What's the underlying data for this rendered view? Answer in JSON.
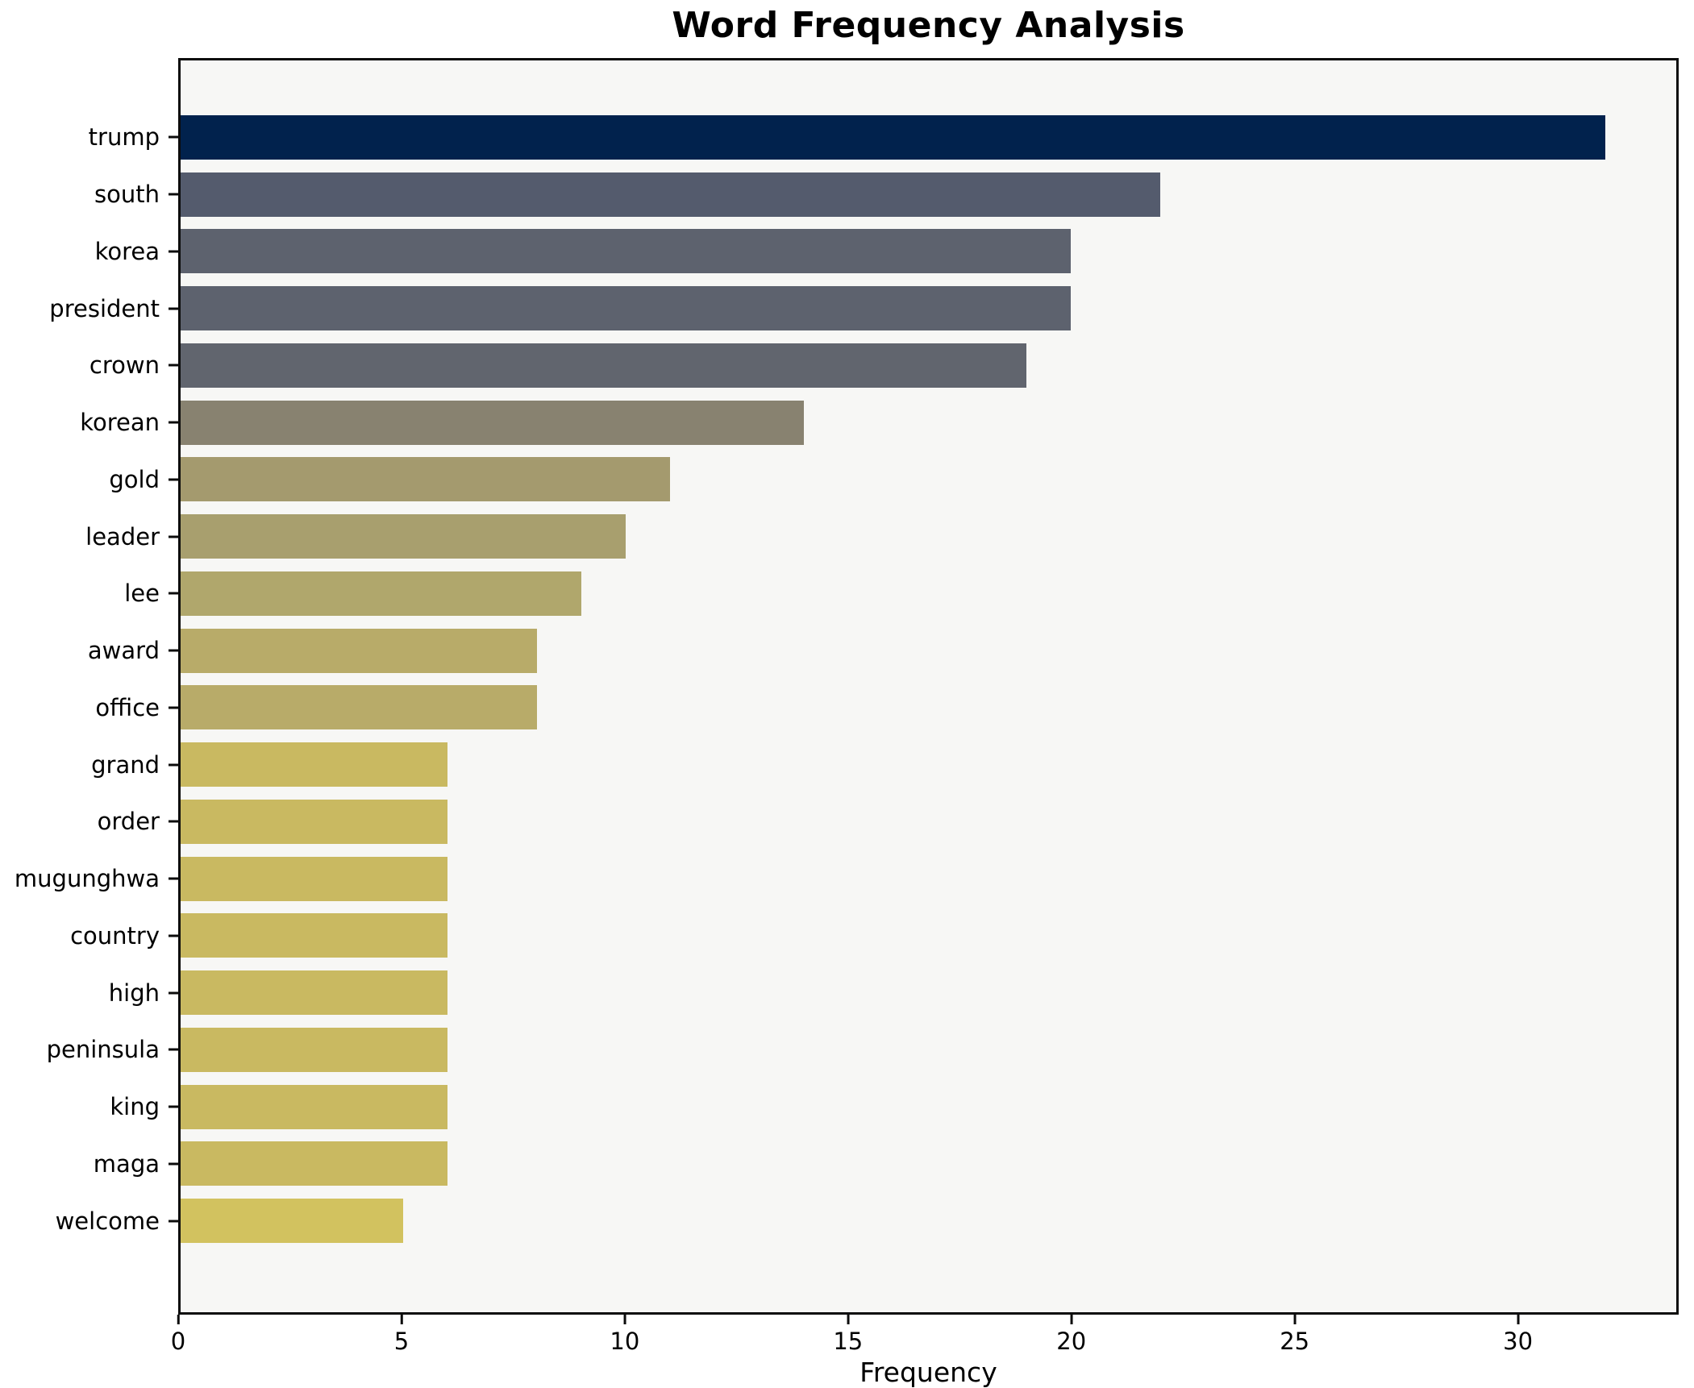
{
  "chart_data": {
    "type": "bar",
    "orientation": "horizontal",
    "title": "Word Frequency Analysis",
    "xlabel": "Frequency",
    "ylabel": "",
    "xlim": [
      0,
      33.6
    ],
    "x_ticks": [
      0,
      5,
      10,
      15,
      20,
      25,
      30
    ],
    "grid": false,
    "legend": null,
    "categories": [
      "trump",
      "south",
      "korea",
      "president",
      "crown",
      "korean",
      "gold",
      "leader",
      "lee",
      "award",
      "office",
      "grand",
      "order",
      "mugunghwa",
      "country",
      "high",
      "peninsula",
      "king",
      "maga",
      "welcome"
    ],
    "values": [
      32,
      22,
      20,
      20,
      19,
      14,
      11,
      10,
      9,
      8,
      8,
      6,
      6,
      6,
      6,
      6,
      6,
      6,
      6,
      5
    ],
    "bar_colors": [
      "#01224d",
      "#545b6d",
      "#5d626e",
      "#5d626e",
      "#61656e",
      "#888270",
      "#a49a6e",
      "#a89f6e",
      "#b0a76c",
      "#b8ab69",
      "#b8ab69",
      "#c9b961",
      "#c9b961",
      "#c9b961",
      "#c9b961",
      "#c9b961",
      "#c9b961",
      "#c9b961",
      "#c9b961",
      "#d2c25f"
    ]
  },
  "colors": {
    "figure_bg": "#ffffff",
    "axes_bg": "#f7f7f5",
    "spine": "#0c0c0c",
    "text": "#000000"
  }
}
